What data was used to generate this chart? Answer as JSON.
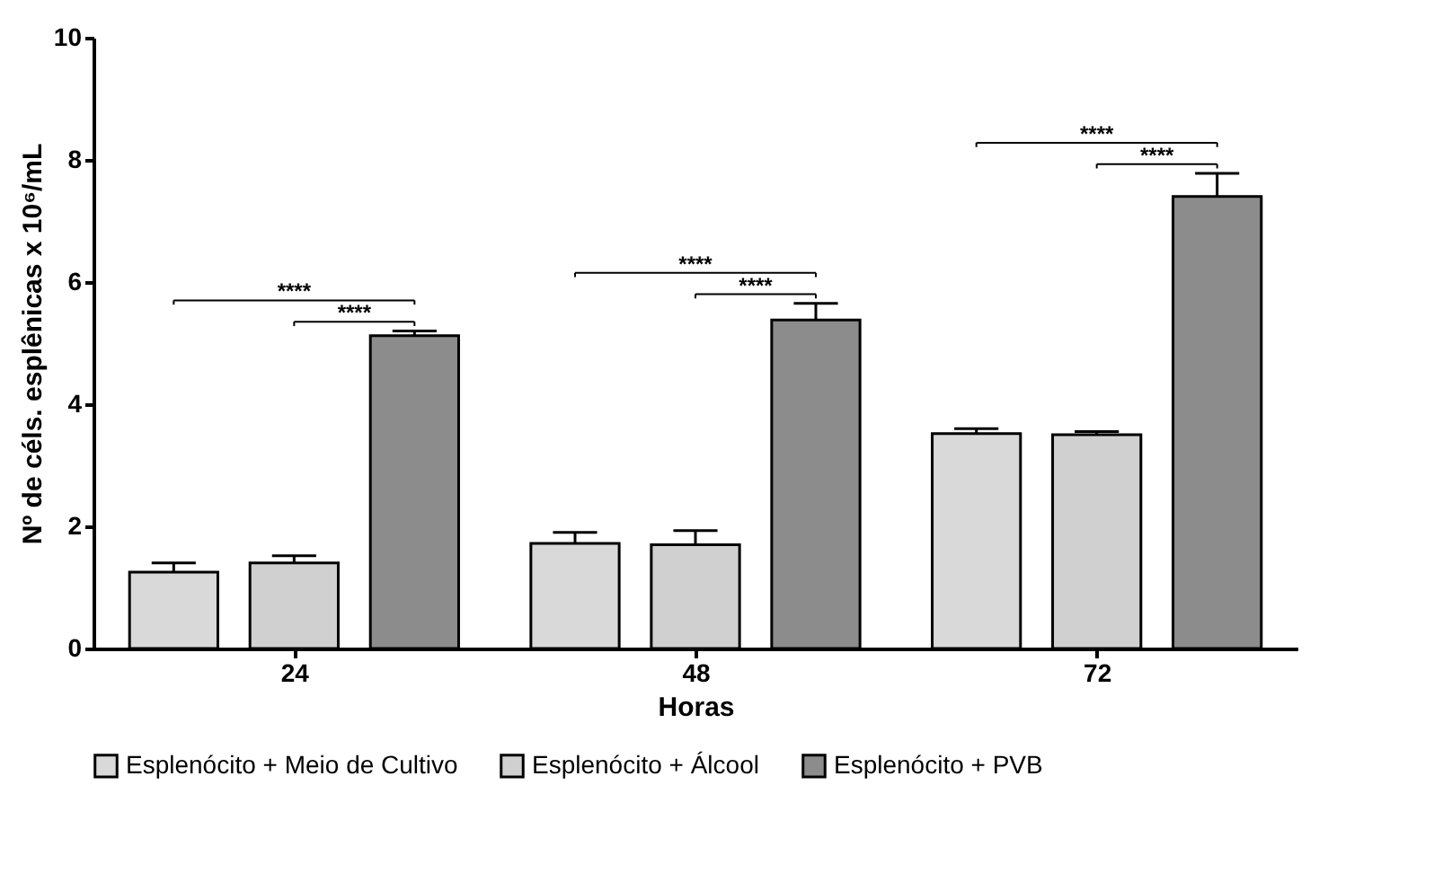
{
  "chart_data": {
    "type": "bar",
    "xlabel": "Horas",
    "ylabel": "Nº de céls. esplênicas x 10⁶/mL",
    "categories": [
      "24",
      "48",
      "72"
    ],
    "series": [
      {
        "name": "Esplenócito + Meio de Cultivo",
        "color": "#d9d9d9",
        "values": [
          1.25,
          1.72,
          3.52
        ],
        "errors": [
          0.15,
          0.18,
          0.08
        ]
      },
      {
        "name": "Esplenócito + Álcool",
        "color": "#d0d0d0",
        "values": [
          1.4,
          1.7,
          3.5
        ],
        "errors": [
          0.12,
          0.23,
          0.05
        ]
      },
      {
        "name": "Esplenócito + PVB",
        "color": "#8c8c8c",
        "values": [
          5.12,
          5.38,
          7.4
        ],
        "errors": [
          0.08,
          0.27,
          0.38
        ]
      }
    ],
    "ylim": [
      0,
      10
    ],
    "yticks": [
      0,
      2,
      4,
      6,
      8,
      10
    ],
    "grid": false,
    "legend": "bottom",
    "annotations": [
      "****",
      "****",
      "****",
      "****",
      "****",
      "****"
    ]
  }
}
